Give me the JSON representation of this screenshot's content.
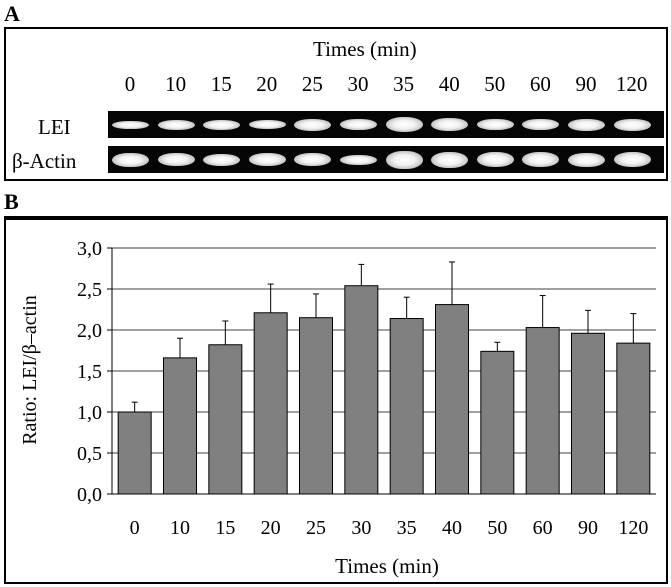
{
  "panelA": {
    "letter": "A",
    "title": "Times  (min)",
    "times": [
      "0",
      "10",
      "15",
      "20",
      "25",
      "30",
      "35",
      "40",
      "50",
      "60",
      "90",
      "120"
    ],
    "row_labels": [
      "LEI",
      "β-Actin"
    ]
  },
  "panelB": {
    "letter": "B"
  },
  "chart_data": {
    "type": "bar",
    "categories": [
      "0",
      "10",
      "15",
      "20",
      "25",
      "30",
      "35",
      "40",
      "50",
      "60",
      "90",
      "120"
    ],
    "values": [
      1.0,
      1.66,
      1.82,
      2.21,
      2.15,
      2.54,
      2.14,
      2.31,
      1.74,
      2.03,
      1.96,
      1.84
    ],
    "errors": [
      0.12,
      0.24,
      0.29,
      0.35,
      0.29,
      0.26,
      0.26,
      0.52,
      0.11,
      0.39,
      0.28,
      0.36
    ],
    "xlabel": "Times  (min)",
    "ylabel": "Ratio: LEI/β–actin",
    "ylim": [
      0,
      3.0
    ],
    "yticks": [
      "0,0",
      "0,5",
      "1,0",
      "1,5",
      "2,0",
      "2,5",
      "3,0"
    ],
    "grid": true,
    "bar_color": "#808080"
  }
}
